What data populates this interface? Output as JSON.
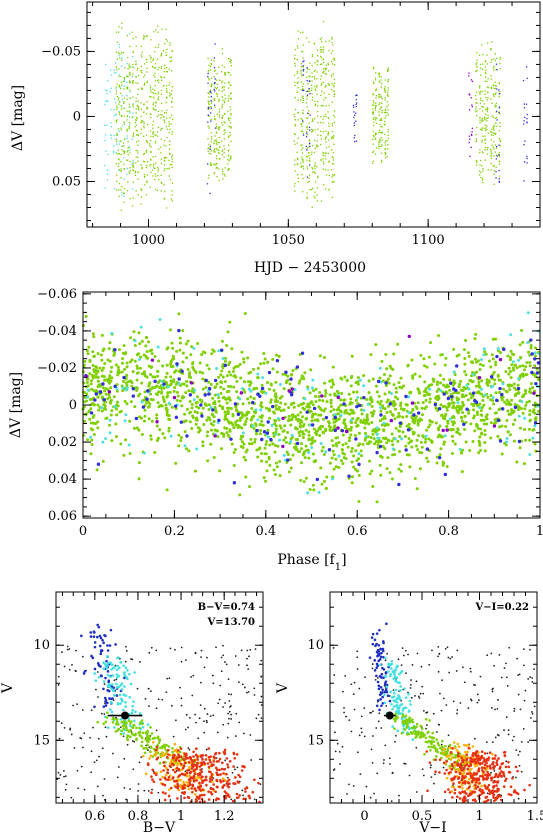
{
  "chart_data": [
    {
      "id": "lightcurve",
      "type": "scatter",
      "xlabel": "HJD − 2453000",
      "ylabel": "ΔV [mag]",
      "xlim": [
        978,
        1140
      ],
      "ylim": [
        0.085,
        -0.088
      ],
      "y_inverted": true,
      "xticks": [
        1000,
        1050,
        1100
      ],
      "yticks": [
        -0.05,
        0,
        0.05
      ],
      "xtick_labels": [
        "1000",
        "1050",
        "1100"
      ],
      "ytick_labels": [
        "−0.05",
        "0",
        "0.05"
      ],
      "series_colors": {
        "main": "#7fd000",
        "aux1": "#3030d8",
        "aux2": "#50e0e0",
        "aux3": "#9000c0"
      },
      "series": [
        {
          "color_key": "aux2",
          "segments": [
            [
              984,
              995,
              0.07
            ]
          ]
        },
        {
          "color_key": "main",
          "segments": [
            [
              988,
              1009,
              0.075
            ],
            [
              1021,
              1030,
              0.055
            ],
            [
              1052,
              1067,
              0.075
            ],
            [
              1080,
              1086,
              0.045
            ],
            [
              1117,
              1126,
              0.06
            ]
          ]
        },
        {
          "color_key": "aux1",
          "segments": [
            [
              1021,
              1024,
              0.06
            ],
            [
              1055,
              1058,
              0.06
            ],
            [
              1073,
              1075,
              0.03
            ],
            [
              1124,
              1126,
              0.06
            ],
            [
              1134,
              1136,
              0.06
            ]
          ]
        },
        {
          "color_key": "aux3",
          "segments": [
            [
              1114,
              1116,
              0.04
            ]
          ]
        }
      ]
    },
    {
      "id": "phased",
      "type": "scatter",
      "xlabel": "Phase [f",
      "xlabel_sub": "1",
      "xlabel_close": "]",
      "ylabel": "ΔV [mag]",
      "xlim": [
        0,
        1
      ],
      "ylim": [
        0.061,
        -0.061
      ],
      "y_inverted": true,
      "xticks": [
        0,
        0.2,
        0.4,
        0.6,
        0.8,
        1
      ],
      "yticks": [
        -0.06,
        -0.04,
        -0.02,
        0,
        0.02,
        0.04,
        0.06
      ],
      "xtick_labels": [
        "0",
        "0.2",
        "0.4",
        "0.6",
        "0.8",
        "1"
      ],
      "ytick_labels": [
        "−0.06",
        "−0.04",
        "−0.02",
        "0",
        "0.02",
        "0.04",
        "0.06"
      ],
      "amplitude": 0.01,
      "series_colors": {
        "main": "#7fd000",
        "aux1": "#3030d8",
        "aux2": "#50e0e0",
        "aux3": "#9000c0"
      }
    },
    {
      "id": "cmd-bv",
      "type": "scatter",
      "xlabel": "B−V",
      "ylabel": "V",
      "xlim": [
        0.42,
        1.38
      ],
      "ylim": [
        18.3,
        7.2
      ],
      "y_inverted": true,
      "xticks": [
        0.6,
        0.8,
        1,
        1.2
      ],
      "yticks": [
        10,
        15
      ],
      "xtick_labels": [
        "0.6",
        "0.8",
        "1",
        "1.2"
      ],
      "ytick_labels": [
        "10",
        "15"
      ],
      "annotations": [
        "B−V=0.74",
        "V=13.70"
      ],
      "highlight": {
        "x": 0.74,
        "y": 13.7,
        "xerr": 0.08,
        "yerr": 0.15
      }
    },
    {
      "id": "cmd-vi",
      "type": "scatter",
      "xlabel": "V−I",
      "ylabel": "V",
      "xlim": [
        -0.3,
        1.5
      ],
      "ylim": [
        18.3,
        7.2
      ],
      "y_inverted": true,
      "xticks": [
        0,
        0.5,
        1,
        1.5
      ],
      "yticks": [
        10,
        15
      ],
      "xtick_labels": [
        "0",
        "0.5",
        "1",
        "1.5"
      ],
      "ytick_labels": [
        "10",
        "15"
      ],
      "annotations": [
        "V−I=0.22"
      ],
      "highlight": {
        "x": 0.22,
        "y": 13.7,
        "xerr": 0.05,
        "yerr": 0.15
      }
    }
  ]
}
